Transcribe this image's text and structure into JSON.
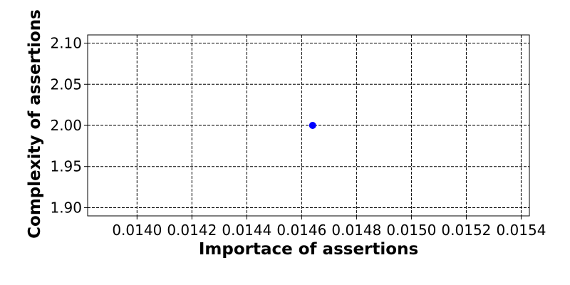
{
  "chart_data": {
    "type": "scatter",
    "title": "",
    "xlabel": "Importace of assertions",
    "ylabel": "Complexity of assertions",
    "xlim": [
      0.01382,
      0.01543
    ],
    "ylim": [
      1.89,
      2.11
    ],
    "xticks": [
      0.014,
      0.0142,
      0.0144,
      0.0146,
      0.0148,
      0.015,
      0.0152,
      0.0154
    ],
    "xtick_labels": [
      "0.0140",
      "0.0142",
      "0.0144",
      "0.0146",
      "0.0148",
      "0.0150",
      "0.0152",
      "0.0154"
    ],
    "yticks": [
      1.9,
      1.95,
      2.0,
      2.05,
      2.1
    ],
    "ytick_labels": [
      "1.90",
      "1.95",
      "2.00",
      "2.05",
      "2.10"
    ],
    "grid": true,
    "grid_style": "dashed",
    "series": [
      {
        "color": "#0000ff",
        "points": [
          {
            "x": 0.01464,
            "y": 2.0
          }
        ]
      }
    ]
  }
}
